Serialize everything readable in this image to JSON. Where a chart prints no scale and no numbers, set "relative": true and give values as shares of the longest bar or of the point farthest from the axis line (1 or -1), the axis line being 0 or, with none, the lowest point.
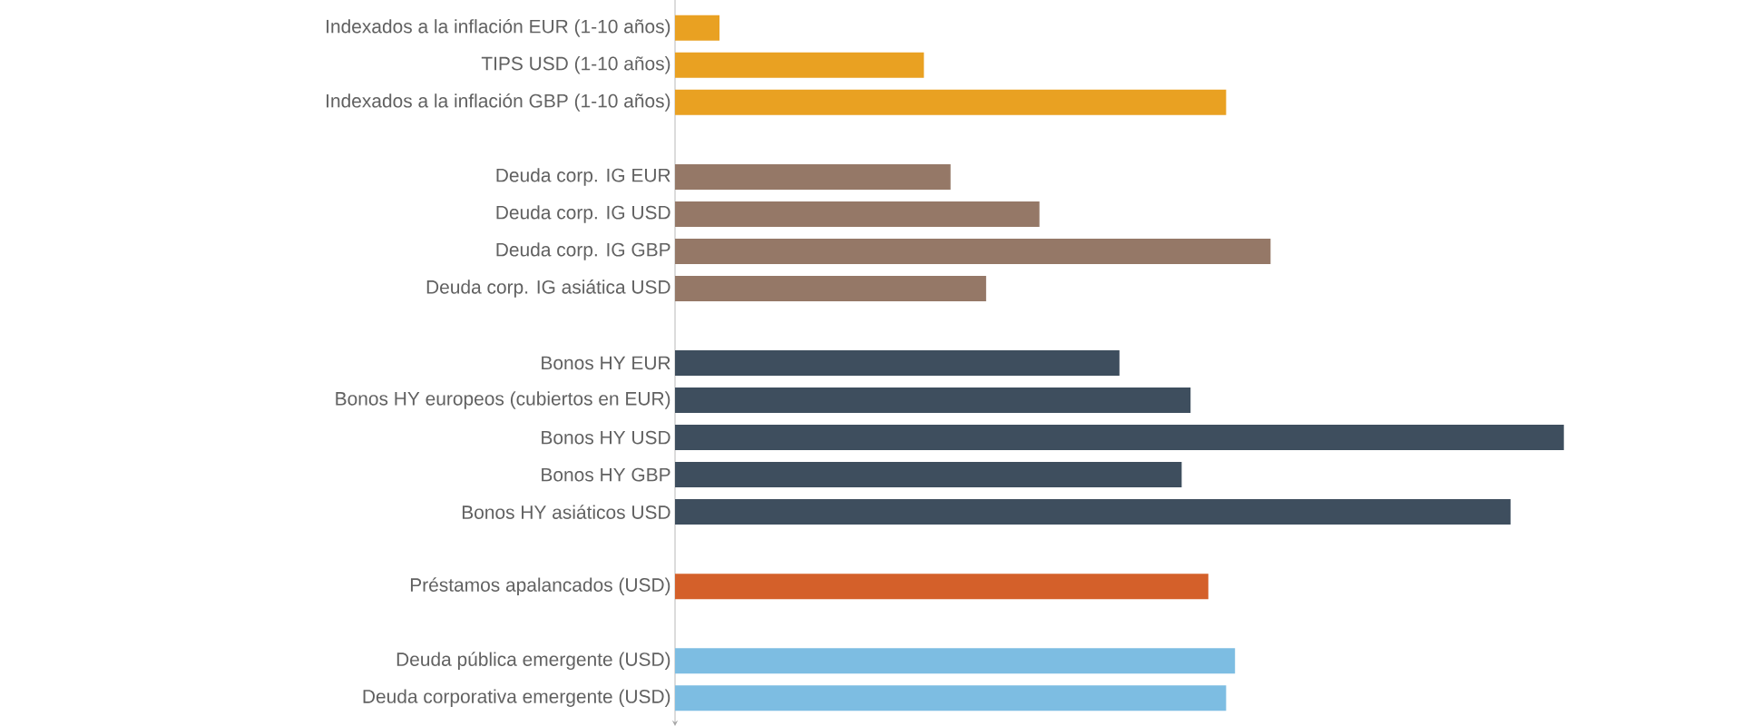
{
  "chart_data": {
    "type": "bar",
    "orientation": "horizontal",
    "relative": true,
    "categories": [
      "Indexados a la inflación EUR (1-10 años)",
      "TIPS USD (1-10 años)",
      "Indexados a la inflación GBP (1-10 años)",
      null,
      "Deuda corp. IG EUR",
      "Deuda corp. IG USD",
      "Deuda corp. IG GBP",
      "Deuda corp. IG asiática USD",
      null,
      "Bonos HY EUR",
      "Bonos HY europeos (cubiertos en EUR)",
      "Bonos HY USD",
      "Bonos HY GBP",
      "Bonos HY asiáticos USD",
      null,
      "Préstamos apalancados (USD)",
      null,
      "Deuda pública emergente (USD)",
      "Deuda corporativa emergente (USD)"
    ],
    "values": [
      0.05,
      0.28,
      0.62,
      null,
      0.31,
      0.41,
      0.67,
      0.35,
      null,
      0.5,
      0.58,
      1,
      0.57,
      0.94,
      null,
      0.6,
      null,
      0.63,
      0.62
    ],
    "colors": [
      "#e9a122",
      "#e9a122",
      "#e9a122",
      null,
      "#957867",
      "#957867",
      "#957867",
      "#957867",
      null,
      "#3e4e5e",
      "#3e4e5e",
      "#3e4e5e",
      "#3e4e5e",
      "#3e4e5e",
      null,
      "#d4602a",
      null,
      "#7dbde2",
      "#7dbde2"
    ]
  }
}
